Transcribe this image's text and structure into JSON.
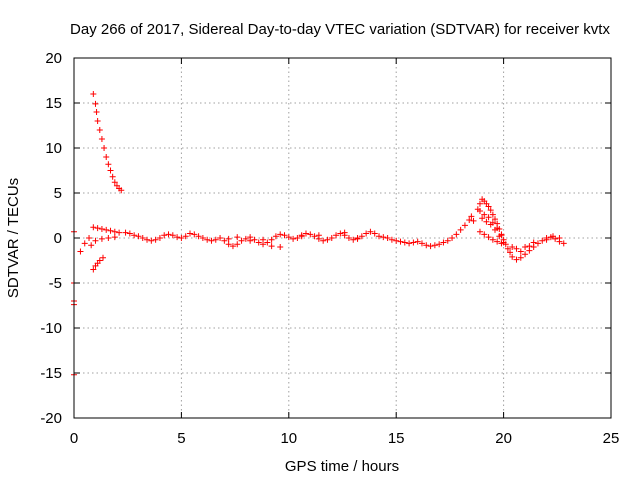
{
  "chart_data": {
    "type": "scatter",
    "title": "Day 266 of 2017, Sidereal Day-to-day VTEC variation (SDTVAR) for receiver kvtx",
    "xlabel": "GPS time / hours",
    "ylabel": "SDTVAR / TECUs",
    "xlim": [
      0,
      25
    ],
    "ylim": [
      -20,
      20
    ],
    "xticks": [
      0,
      5,
      10,
      15,
      20,
      25
    ],
    "yticks": [
      -20,
      -15,
      -10,
      -5,
      0,
      5,
      10,
      15,
      20
    ],
    "xtick_labels": [
      "0",
      "5",
      "10",
      "15",
      "20",
      "25"
    ],
    "ytick_labels": [
      "-20",
      "-15",
      "-10",
      "-5",
      "0",
      "5",
      "10",
      "15",
      "20"
    ],
    "grid": true,
    "marker": "+",
    "color": "#ff0000",
    "series": [
      {
        "name": "SDTVAR",
        "points": [
          [
            0.0,
            0.7
          ],
          [
            0.0,
            -5.0
          ],
          [
            0.0,
            -7.0
          ],
          [
            0.0,
            -7.4
          ],
          [
            0.0,
            -15.2
          ],
          [
            0.3,
            -1.5
          ],
          [
            0.5,
            -0.6
          ],
          [
            0.7,
            0.0
          ],
          [
            0.9,
            16.0
          ],
          [
            1.0,
            14.9
          ],
          [
            1.05,
            14.0
          ],
          [
            1.1,
            13.0
          ],
          [
            1.2,
            12.0
          ],
          [
            1.3,
            11.0
          ],
          [
            1.4,
            10.0
          ],
          [
            1.5,
            9.0
          ],
          [
            1.6,
            8.2
          ],
          [
            1.7,
            7.5
          ],
          [
            1.8,
            6.8
          ],
          [
            1.9,
            6.2
          ],
          [
            2.0,
            5.8
          ],
          [
            2.1,
            5.5
          ],
          [
            2.2,
            5.3
          ],
          [
            0.9,
            -3.5
          ],
          [
            1.0,
            -3.1
          ],
          [
            1.1,
            -2.8
          ],
          [
            1.2,
            -2.5
          ],
          [
            1.35,
            -2.2
          ],
          [
            0.9,
            1.2
          ],
          [
            1.1,
            1.1
          ],
          [
            1.3,
            1.0
          ],
          [
            1.5,
            0.9
          ],
          [
            1.7,
            0.8
          ],
          [
            1.9,
            0.7
          ],
          [
            2.1,
            0.6
          ],
          [
            0.8,
            -0.8
          ],
          [
            1.0,
            -0.3
          ],
          [
            1.3,
            -0.1
          ],
          [
            1.6,
            0.0
          ],
          [
            1.9,
            0.1
          ],
          [
            2.4,
            0.6
          ],
          [
            2.6,
            0.5
          ],
          [
            2.8,
            0.3
          ],
          [
            3.0,
            0.2
          ],
          [
            3.2,
            0.0
          ],
          [
            3.4,
            -0.2
          ],
          [
            3.6,
            -0.3
          ],
          [
            3.8,
            -0.2
          ],
          [
            4.0,
            0.0
          ],
          [
            4.2,
            0.3
          ],
          [
            4.4,
            0.4
          ],
          [
            4.6,
            0.3
          ],
          [
            4.8,
            0.1
          ],
          [
            5.0,
            0.0
          ],
          [
            5.2,
            0.2
          ],
          [
            5.4,
            0.5
          ],
          [
            5.6,
            0.4
          ],
          [
            5.8,
            0.2
          ],
          [
            6.0,
            0.0
          ],
          [
            6.2,
            -0.2
          ],
          [
            6.4,
            -0.3
          ],
          [
            6.6,
            -0.2
          ],
          [
            6.8,
            0.0
          ],
          [
            7.0,
            -0.3
          ],
          [
            7.2,
            -0.7
          ],
          [
            7.4,
            -0.9
          ],
          [
            7.6,
            -0.7
          ],
          [
            7.8,
            -0.3
          ],
          [
            8.0,
            -0.1
          ],
          [
            8.2,
            0.1
          ],
          [
            8.4,
            -0.2
          ],
          [
            8.6,
            -0.5
          ],
          [
            8.8,
            -0.7
          ],
          [
            9.0,
            -0.5
          ],
          [
            9.2,
            -0.2
          ],
          [
            9.4,
            0.2
          ],
          [
            9.6,
            0.4
          ],
          [
            9.8,
            0.3
          ],
          [
            10.0,
            0.1
          ],
          [
            10.2,
            -0.1
          ],
          [
            10.4,
            0.0
          ],
          [
            10.6,
            0.3
          ],
          [
            10.8,
            0.5
          ],
          [
            11.0,
            0.4
          ],
          [
            11.2,
            0.2
          ],
          [
            11.4,
            -0.1
          ],
          [
            11.6,
            -0.3
          ],
          [
            11.8,
            -0.2
          ],
          [
            12.0,
            0.0
          ],
          [
            12.2,
            0.3
          ],
          [
            12.4,
            0.5
          ],
          [
            12.6,
            0.3
          ],
          [
            12.8,
            0.0
          ],
          [
            13.0,
            -0.2
          ],
          [
            13.2,
            -0.1
          ],
          [
            13.4,
            0.2
          ],
          [
            13.6,
            0.5
          ],
          [
            13.8,
            0.7
          ],
          [
            14.0,
            0.5
          ],
          [
            14.2,
            0.2
          ],
          [
            7.2,
            -0.1
          ],
          [
            7.6,
            0.1
          ],
          [
            8.2,
            -0.3
          ],
          [
            8.8,
            -0.2
          ],
          [
            9.2,
            -0.9
          ],
          [
            9.6,
            -1.0
          ],
          [
            10.6,
            0.2
          ],
          [
            11.4,
            0.3
          ],
          [
            12.6,
            0.6
          ],
          [
            13.2,
            0.0
          ],
          [
            14.4,
            0.1
          ],
          [
            14.6,
            0.0
          ],
          [
            14.8,
            -0.2
          ],
          [
            15.0,
            -0.3
          ],
          [
            15.2,
            -0.4
          ],
          [
            15.4,
            -0.5
          ],
          [
            15.6,
            -0.6
          ],
          [
            15.8,
            -0.5
          ],
          [
            16.0,
            -0.4
          ],
          [
            16.2,
            -0.6
          ],
          [
            16.4,
            -0.8
          ],
          [
            16.6,
            -0.9
          ],
          [
            16.8,
            -0.8
          ],
          [
            17.0,
            -0.7
          ],
          [
            17.2,
            -0.5
          ],
          [
            17.4,
            -0.3
          ],
          [
            17.6,
            0.0
          ],
          [
            17.8,
            0.4
          ],
          [
            18.0,
            0.9
          ],
          [
            18.2,
            1.4
          ],
          [
            18.4,
            2.0
          ],
          [
            18.5,
            2.4
          ],
          [
            18.6,
            1.9
          ],
          [
            18.8,
            3.2
          ],
          [
            18.9,
            3.8
          ],
          [
            19.0,
            4.3
          ],
          [
            19.1,
            4.1
          ],
          [
            19.2,
            3.8
          ],
          [
            19.3,
            3.5
          ],
          [
            19.4,
            3.1
          ],
          [
            19.5,
            2.6
          ],
          [
            19.6,
            2.1
          ],
          [
            19.7,
            1.6
          ],
          [
            19.8,
            1.0
          ],
          [
            19.9,
            0.4
          ],
          [
            20.0,
            -0.2
          ],
          [
            20.1,
            -0.7
          ],
          [
            18.9,
            3.0
          ],
          [
            19.1,
            2.6
          ],
          [
            19.3,
            2.3
          ],
          [
            19.5,
            1.7
          ],
          [
            19.7,
            1.1
          ],
          [
            19.9,
            0.3
          ],
          [
            19.0,
            2.2
          ],
          [
            19.2,
            1.8
          ],
          [
            19.4,
            1.5
          ],
          [
            19.6,
            0.9
          ],
          [
            19.8,
            0.2
          ],
          [
            20.0,
            -0.5
          ],
          [
            18.9,
            0.7
          ],
          [
            19.1,
            0.4
          ],
          [
            19.3,
            0.1
          ],
          [
            19.5,
            -0.2
          ],
          [
            19.7,
            -0.4
          ],
          [
            19.9,
            -0.6
          ],
          [
            20.2,
            -1.2
          ],
          [
            20.3,
            -1.6
          ],
          [
            20.4,
            -2.1
          ],
          [
            20.6,
            -2.4
          ],
          [
            20.8,
            -2.2
          ],
          [
            21.0,
            -1.8
          ],
          [
            21.2,
            -1.4
          ],
          [
            21.4,
            -1.0
          ],
          [
            21.6,
            -0.6
          ],
          [
            21.8,
            -0.3
          ],
          [
            22.0,
            0.0
          ],
          [
            22.2,
            0.1
          ],
          [
            22.4,
            -0.1
          ],
          [
            22.6,
            -0.4
          ],
          [
            22.8,
            -0.6
          ],
          [
            20.4,
            -1.0
          ],
          [
            20.6,
            -1.2
          ],
          [
            20.8,
            -1.5
          ],
          [
            21.0,
            -1.0
          ],
          [
            21.2,
            -0.9
          ],
          [
            21.4,
            -0.5
          ],
          [
            22.0,
            -0.2
          ],
          [
            22.3,
            0.2
          ],
          [
            22.6,
            0.0
          ]
        ]
      }
    ]
  }
}
